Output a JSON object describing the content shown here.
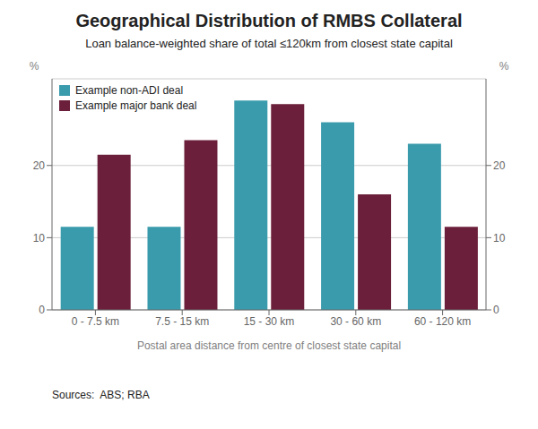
{
  "chart_data": {
    "type": "bar",
    "title": "Geographical Distribution of RMBS Collateral",
    "subtitle": "Loan balance-weighted share of total ≤120km from closest state capital",
    "categories": [
      "0 - 7.5 km",
      "7.5 - 15 km",
      "15 - 30 km",
      "30 - 60 km",
      "60 - 120 km"
    ],
    "series": [
      {
        "name": "Example non-ADI deal",
        "color": "#3A9BAD",
        "values": [
          11.5,
          11.5,
          29.0,
          26.0,
          23.0
        ]
      },
      {
        "name": "Example major bank deal",
        "color": "#6B1F3A",
        "values": [
          21.5,
          23.5,
          28.5,
          16.0,
          11.5
        ]
      }
    ],
    "x_label": "Postal area distance from centre of closest state capital",
    "y_label": "%",
    "y2_label": "%",
    "ylim": [
      0,
      32
    ],
    "yticks": [
      0,
      10,
      20
    ],
    "y2lim": [
      0,
      32
    ],
    "y2ticks": [
      0,
      10,
      20
    ],
    "grid": true,
    "legend": "upper left",
    "annotations": [
      "Sources:  ABS; RBA"
    ]
  }
}
